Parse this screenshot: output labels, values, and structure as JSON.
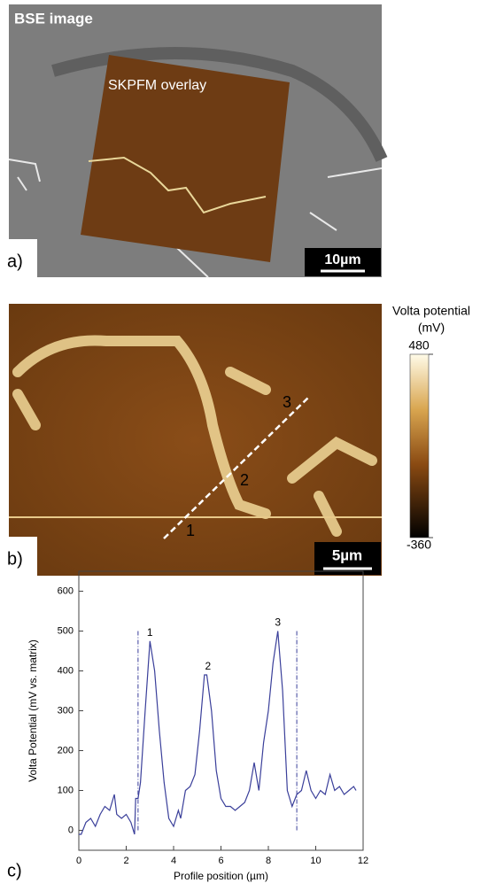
{
  "panels": [
    {
      "label": "a)",
      "title": "BSE image",
      "overlay_label": "SKPFM overlay",
      "scale_bar": "10µm"
    },
    {
      "label": "b)",
      "scale_bar": "5µm",
      "profile_points": [
        "1",
        "2",
        "3"
      ],
      "colorbar": {
        "title": [
          "Volta potential",
          "(mV)"
        ],
        "lim": [
          -360,
          480
        ],
        "ticks": [
          -360,
          480
        ]
      }
    }
  ],
  "chart_data": {
    "type": "line",
    "panel_label": "c)",
    "x_label": "Profile position (µm)",
    "y_label": "Volta Potential  (mV vs. matrix)",
    "color": "#3a3f9a",
    "x": [
      0,
      0.1,
      0.3,
      0.5,
      0.7,
      0.9,
      1.1,
      1.3,
      1.5,
      1.6,
      1.8,
      2.0,
      2.2,
      2.35,
      2.4,
      2.5,
      2.6,
      2.8,
      3.0,
      3.2,
      3.4,
      3.6,
      3.8,
      4.0,
      4.2,
      4.3,
      4.5,
      4.7,
      4.9,
      5.1,
      5.3,
      5.4,
      5.6,
      5.8,
      6.0,
      6.2,
      6.4,
      6.6,
      6.8,
      7.0,
      7.2,
      7.4,
      7.6,
      7.8,
      8.0,
      8.2,
      8.4,
      8.6,
      8.8,
      9.0,
      9.2,
      9.4,
      9.6,
      9.8,
      10.0,
      10.2,
      10.4,
      10.6,
      10.8,
      11.0,
      11.2,
      11.4,
      11.6,
      11.7
    ],
    "values": [
      -10,
      -10,
      20,
      30,
      10,
      40,
      60,
      50,
      90,
      40,
      30,
      40,
      20,
      -10,
      80,
      80,
      120,
      300,
      475,
      400,
      250,
      120,
      30,
      10,
      50,
      30,
      100,
      110,
      140,
      250,
      390,
      390,
      300,
      150,
      80,
      60,
      60,
      50,
      60,
      70,
      100,
      170,
      100,
      220,
      300,
      420,
      500,
      350,
      100,
      60,
      90,
      100,
      150,
      100,
      80,
      100,
      90,
      140,
      100,
      110,
      90,
      100,
      110,
      100
    ],
    "xlim": [
      0,
      12
    ],
    "xticks": [
      0,
      2,
      4,
      6,
      8,
      10,
      12
    ],
    "ylim": [
      -50,
      650
    ],
    "yticks": [
      0,
      100,
      200,
      300,
      400,
      500,
      600
    ],
    "vlines": [
      2.5,
      9.2
    ],
    "vline_top": 500,
    "annotations": [
      {
        "text": "1",
        "x": 3.0,
        "y": 475
      },
      {
        "text": "2",
        "x": 5.45,
        "y": 390
      },
      {
        "text": "3",
        "x": 8.4,
        "y": 500
      }
    ]
  }
}
